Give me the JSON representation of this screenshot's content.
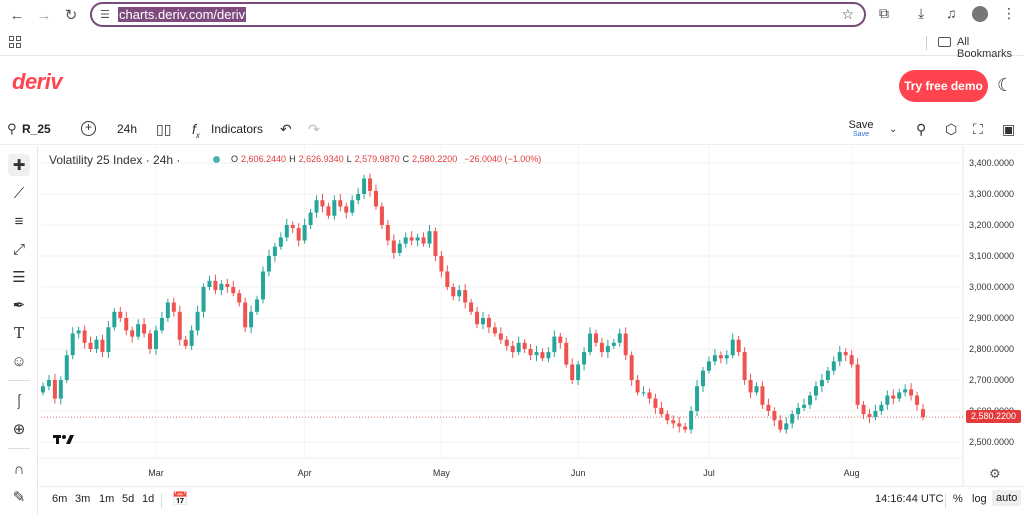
{
  "browser": {
    "url": "charts.deriv.com/deriv",
    "bookmarks_label": "All Bookmarks"
  },
  "header": {
    "logo": "deriv",
    "demo_button": "Try free demo"
  },
  "toolbar": {
    "symbol": "R_25",
    "timeframe": "24h",
    "indicators": "Indicators",
    "save_label": "Save",
    "save_sub": "Save"
  },
  "chart": {
    "title": "Volatility 25 Index · 24h ·",
    "ohlc": {
      "o_label": "O",
      "o": "2,606.2440",
      "h_label": "H",
      "h": "2,626.9340",
      "l_label": "L",
      "l": "2,579.9870",
      "c_label": "C",
      "c": "2,580.2200",
      "change": "−26.0040 (−1.00%)"
    },
    "last_price": "2,580.2200"
  },
  "chart_data": {
    "type": "candlestick",
    "title": "Volatility 25 Index · 24h ·",
    "y_ticks": [
      "3,400.0000",
      "3,300.0000",
      "3,200.0000",
      "3,100.0000",
      "3,000.0000",
      "2,900.0000",
      "2,800.0000",
      "2,700.0000",
      "2,600.0000",
      "2,500.0000"
    ],
    "y_tick_values": [
      3400,
      3300,
      3200,
      3100,
      3000,
      2900,
      2800,
      2700,
      2600,
      2500
    ],
    "x_ticks": [
      "Mar",
      "Apr",
      "May",
      "Jun",
      "Jul",
      "Aug"
    ],
    "x_tick_index": [
      19,
      44,
      67,
      90,
      112,
      136
    ],
    "ylim": [
      2460,
      3430
    ],
    "bull_color": "#26a69a",
    "bear_color": "#ef5350",
    "last_price": 2580.22,
    "closes": [
      2680,
      2700,
      2640,
      2700,
      2780,
      2850,
      2860,
      2820,
      2800,
      2830,
      2790,
      2870,
      2920,
      2900,
      2860,
      2840,
      2880,
      2850,
      2800,
      2860,
      2900,
      2950,
      2920,
      2830,
      2810,
      2860,
      2920,
      3000,
      3020,
      2990,
      3010,
      3000,
      2980,
      2950,
      2870,
      2920,
      2960,
      3050,
      3100,
      3130,
      3160,
      3200,
      3190,
      3150,
      3200,
      3240,
      3280,
      3260,
      3230,
      3280,
      3260,
      3240,
      3280,
      3300,
      3350,
      3310,
      3260,
      3200,
      3150,
      3110,
      3140,
      3160,
      3150,
      3160,
      3140,
      3180,
      3100,
      3050,
      3000,
      2970,
      2990,
      2950,
      2920,
      2880,
      2900,
      2870,
      2850,
      2830,
      2810,
      2790,
      2820,
      2800,
      2780,
      2790,
      2770,
      2790,
      2840,
      2820,
      2750,
      2700,
      2750,
      2790,
      2850,
      2820,
      2790,
      2810,
      2820,
      2850,
      2780,
      2700,
      2660,
      2660,
      2640,
      2610,
      2590,
      2570,
      2560,
      2550,
      2540,
      2600,
      2680,
      2730,
      2760,
      2780,
      2770,
      2780,
      2830,
      2790,
      2700,
      2660,
      2680,
      2620,
      2600,
      2570,
      2540,
      2560,
      2590,
      2610,
      2620,
      2650,
      2680,
      2700,
      2730,
      2760,
      2790,
      2780,
      2750,
      2620,
      2590,
      2580,
      2600,
      2620,
      2650,
      2640,
      2660,
      2670,
      2650,
      2620,
      2580
    ],
    "opens": [
      2660,
      2680,
      2700,
      2640,
      2700,
      2780,
      2850,
      2860,
      2820,
      2800,
      2830,
      2790,
      2870,
      2920,
      2900,
      2860,
      2840,
      2880,
      2850,
      2800,
      2860,
      2900,
      2950,
      2920,
      2830,
      2810,
      2860,
      2920,
      3000,
      3020,
      2990,
      3010,
      3000,
      2980,
      2950,
      2870,
      2920,
      2960,
      3050,
      3100,
      3130,
      3160,
      3200,
      3190,
      3150,
      3200,
      3240,
      3280,
      3260,
      3230,
      3280,
      3260,
      3240,
      3280,
      3300,
      3350,
      3310,
      3260,
      3200,
      3150,
      3110,
      3140,
      3160,
      3150,
      3160,
      3140,
      3180,
      3100,
      3050,
      3000,
      2970,
      2990,
      2950,
      2920,
      2880,
      2900,
      2870,
      2850,
      2830,
      2810,
      2790,
      2820,
      2800,
      2780,
      2790,
      2770,
      2790,
      2840,
      2820,
      2750,
      2700,
      2750,
      2790,
      2850,
      2820,
      2790,
      2810,
      2820,
      2850,
      2780,
      2700,
      2660,
      2660,
      2640,
      2610,
      2590,
      2570,
      2560,
      2550,
      2540,
      2600,
      2680,
      2730,
      2760,
      2780,
      2770,
      2780,
      2830,
      2790,
      2700,
      2660,
      2680,
      2620,
      2600,
      2570,
      2540,
      2560,
      2590,
      2610,
      2620,
      2650,
      2680,
      2700,
      2730,
      2760,
      2790,
      2780,
      2750,
      2620,
      2590,
      2580,
      2600,
      2620,
      2650,
      2640,
      2660,
      2670,
      2650,
      2606
    ]
  },
  "bottom": {
    "timeframes": [
      "6m",
      "3m",
      "1m",
      "5d",
      "1d"
    ],
    "clock": "14:16:44 UTC",
    "pct": "%",
    "log": "log",
    "auto": "auto"
  },
  "icons": [
    "back-arrow-icon",
    "forward-arrow-icon",
    "reload-icon",
    "site-settings-icon",
    "star-icon",
    "extensions-icon",
    "download-icon",
    "media-icon",
    "profile-icon",
    "menu-icon",
    "apps-icon",
    "folder-icon",
    "moon-icon",
    "search-icon",
    "add-icon",
    "candle-icon",
    "fx-icon",
    "undo-icon",
    "redo-icon",
    "chevron-down-icon",
    "zoom-icon",
    "layout-icon",
    "fullscreen-icon",
    "camera-icon",
    "crosshair-icon",
    "trend-line-icon",
    "fib-icon",
    "pattern-icon",
    "multiline-icon",
    "brush-icon",
    "text-icon",
    "emoji-icon",
    "ruler-icon",
    "zoom-in-icon",
    "magnet-icon",
    "pencil-lock-icon",
    "gear-icon",
    "calendar-icon",
    "tradingview-logo"
  ]
}
